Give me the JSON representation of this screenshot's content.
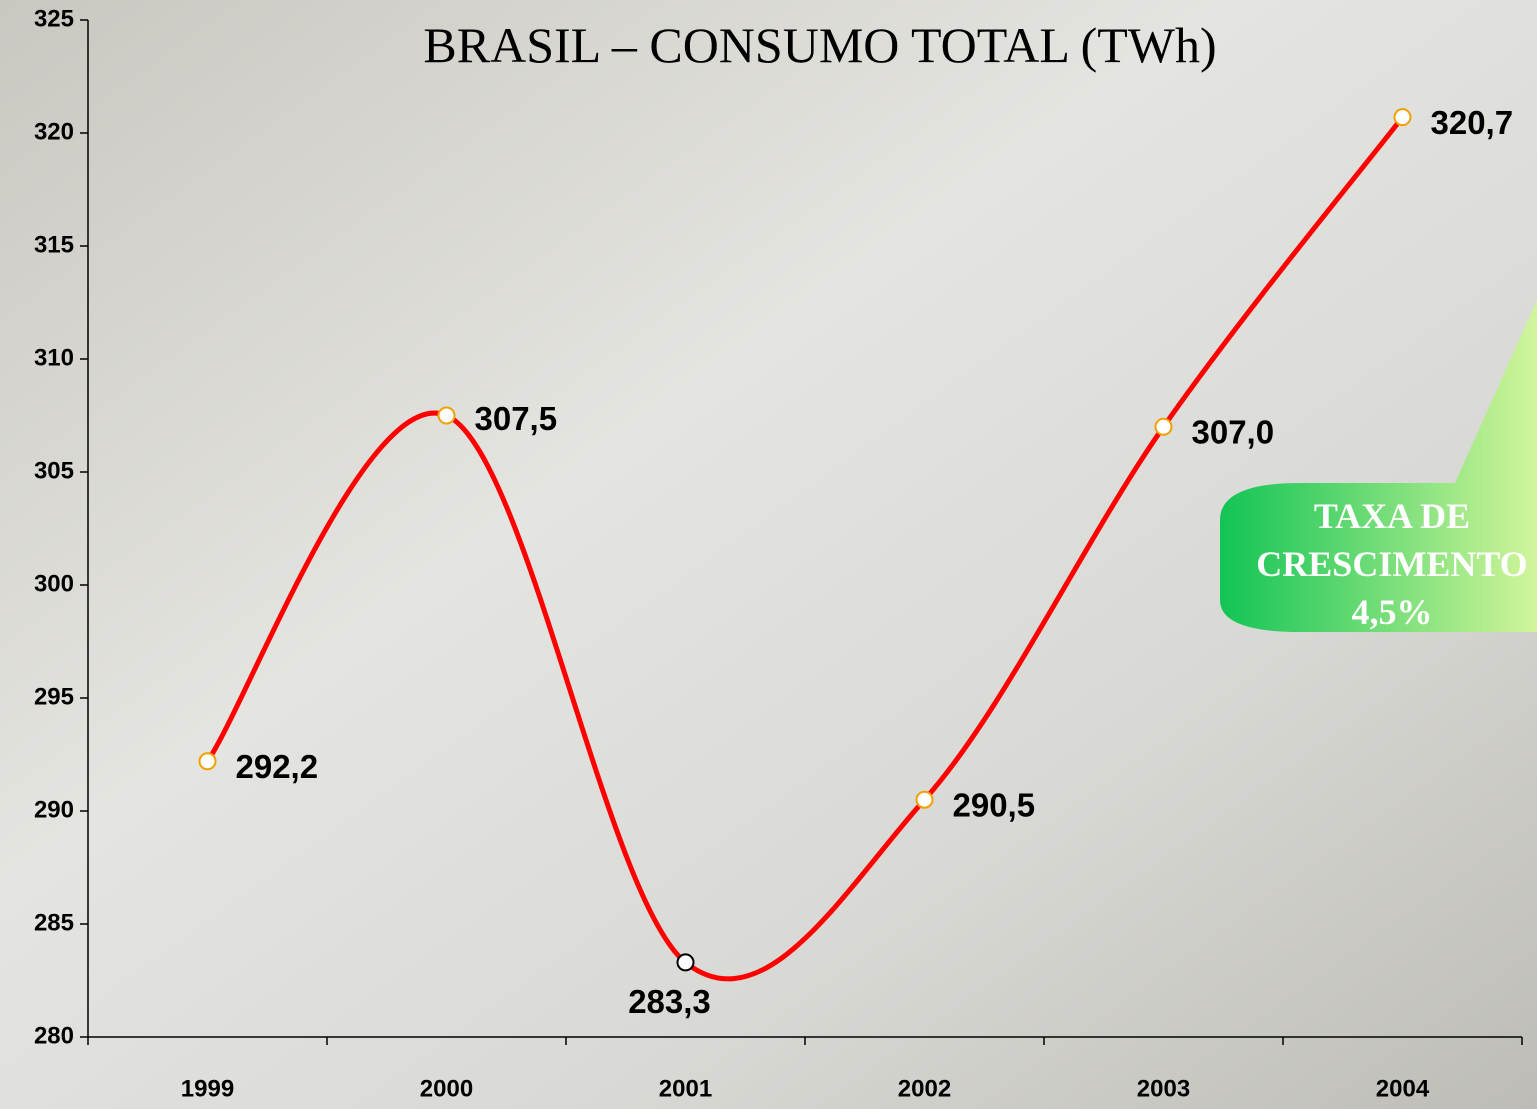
{
  "chart_data": {
    "type": "line",
    "title": "BRASIL – CONSUMO TOTAL (TWh)",
    "categories": [
      "1999",
      "2000",
      "2001",
      "2002",
      "2003",
      "2004"
    ],
    "values": [
      292.2,
      307.5,
      283.3,
      290.5,
      307.0,
      320.7
    ],
    "value_labels": [
      "292,2",
      "307,5",
      "283,3",
      "290,5",
      "307,0",
      "320,7"
    ],
    "color": "#ff0000",
    "marker_edge_colors": [
      "#f0a000",
      "#f0a000",
      "#000000",
      "#f0a000",
      "#f0a000",
      "#f0a000"
    ],
    "smooth": true,
    "ylim": [
      280,
      325
    ],
    "yticks": [
      280,
      285,
      290,
      295,
      300,
      305,
      310,
      315,
      320,
      325
    ],
    "annotation": [
      "TAXA DE",
      "CRESCIMENTO",
      "4,5%"
    ]
  }
}
